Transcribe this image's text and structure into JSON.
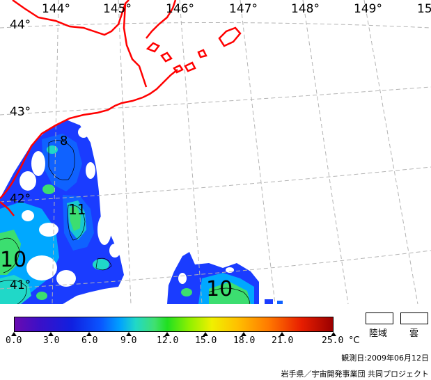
{
  "map": {
    "lon_labels": [
      "144°",
      "145°",
      "146°",
      "147°",
      "148°",
      "149°",
      "15"
    ],
    "lat_labels": [
      "44°",
      "43°",
      "42°",
      "41°"
    ],
    "contour_labels": [
      "8",
      "11",
      "10",
      "10"
    ],
    "colors": {
      "coastline": "#ff0000",
      "graticule": "#b4b4b4",
      "cloud_mask": "#ffffff"
    }
  },
  "colorbar": {
    "ticks": [
      "0.0",
      "3.0",
      "6.0",
      "9.0",
      "12.0",
      "15.0",
      "18.0",
      "21.0",
      "25.0"
    ],
    "unit": "°C",
    "range": [
      0,
      25
    ]
  },
  "legend": {
    "land_label": "陸域",
    "cloud_label": "雲"
  },
  "footer": {
    "observation_date": "観測日:2009年06月12日",
    "credit": "岩手県／宇宙開発事業団 共同プロジェクト"
  }
}
